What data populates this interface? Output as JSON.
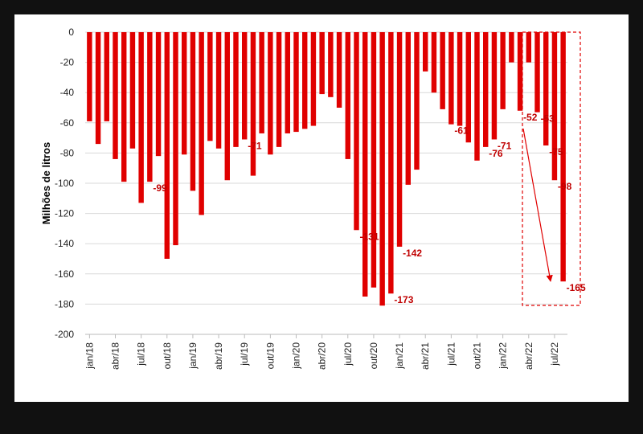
{
  "chart_data": {
    "type": "bar",
    "y_label": "Milhões de litros",
    "color": "#e00000",
    "ylim": [
      -200,
      0
    ],
    "yticks": [
      0,
      -20,
      -40,
      -60,
      -80,
      -100,
      -120,
      -140,
      -160,
      -180,
      -200
    ],
    "grid": true,
    "categories": [
      "jan/18",
      null,
      null,
      "abr/18",
      null,
      null,
      "jul/18",
      null,
      null,
      "out/18",
      null,
      null,
      "jan/19",
      null,
      null,
      "abr/19",
      null,
      null,
      "jul/19",
      null,
      null,
      "out/19",
      null,
      null,
      "jan/20",
      null,
      null,
      "abr/20",
      null,
      null,
      "jul/20",
      null,
      null,
      "out/20",
      null,
      null,
      "jan/21",
      null,
      null,
      "abr/21",
      null,
      null,
      "jul/21",
      null,
      null,
      "out/21",
      null,
      null,
      "jan/22",
      null,
      null,
      "abr/22",
      null,
      null,
      "jul/22",
      null
    ],
    "values": [
      -59,
      -74,
      -59,
      -84,
      -99,
      -77,
      -113,
      -99,
      -82,
      -150,
      -141,
      -81,
      -105,
      -121,
      -72,
      -77,
      -98,
      -76,
      -71,
      -95,
      -67,
      -81,
      -76,
      -67,
      -66,
      -64,
      -62,
      -41,
      -43,
      -50,
      -84,
      -131,
      -175,
      -169,
      -181,
      -173,
      -142,
      -101,
      -91,
      -26,
      -40,
      -51,
      -61,
      -62,
      -73,
      -85,
      -76,
      -71,
      -51,
      -20,
      -52,
      -20,
      -53,
      -75,
      -98,
      -165
    ],
    "value_labels": [
      null,
      null,
      null,
      null,
      null,
      null,
      null,
      -99,
      null,
      null,
      null,
      null,
      null,
      null,
      null,
      null,
      null,
      null,
      -71,
      null,
      null,
      null,
      null,
      null,
      null,
      null,
      null,
      null,
      null,
      null,
      null,
      -131,
      null,
      null,
      null,
      -173,
      -142,
      null,
      null,
      null,
      null,
      null,
      -61,
      null,
      null,
      null,
      -76,
      -71,
      null,
      null,
      -52,
      null,
      -53,
      -75,
      -98,
      -165
    ]
  }
}
